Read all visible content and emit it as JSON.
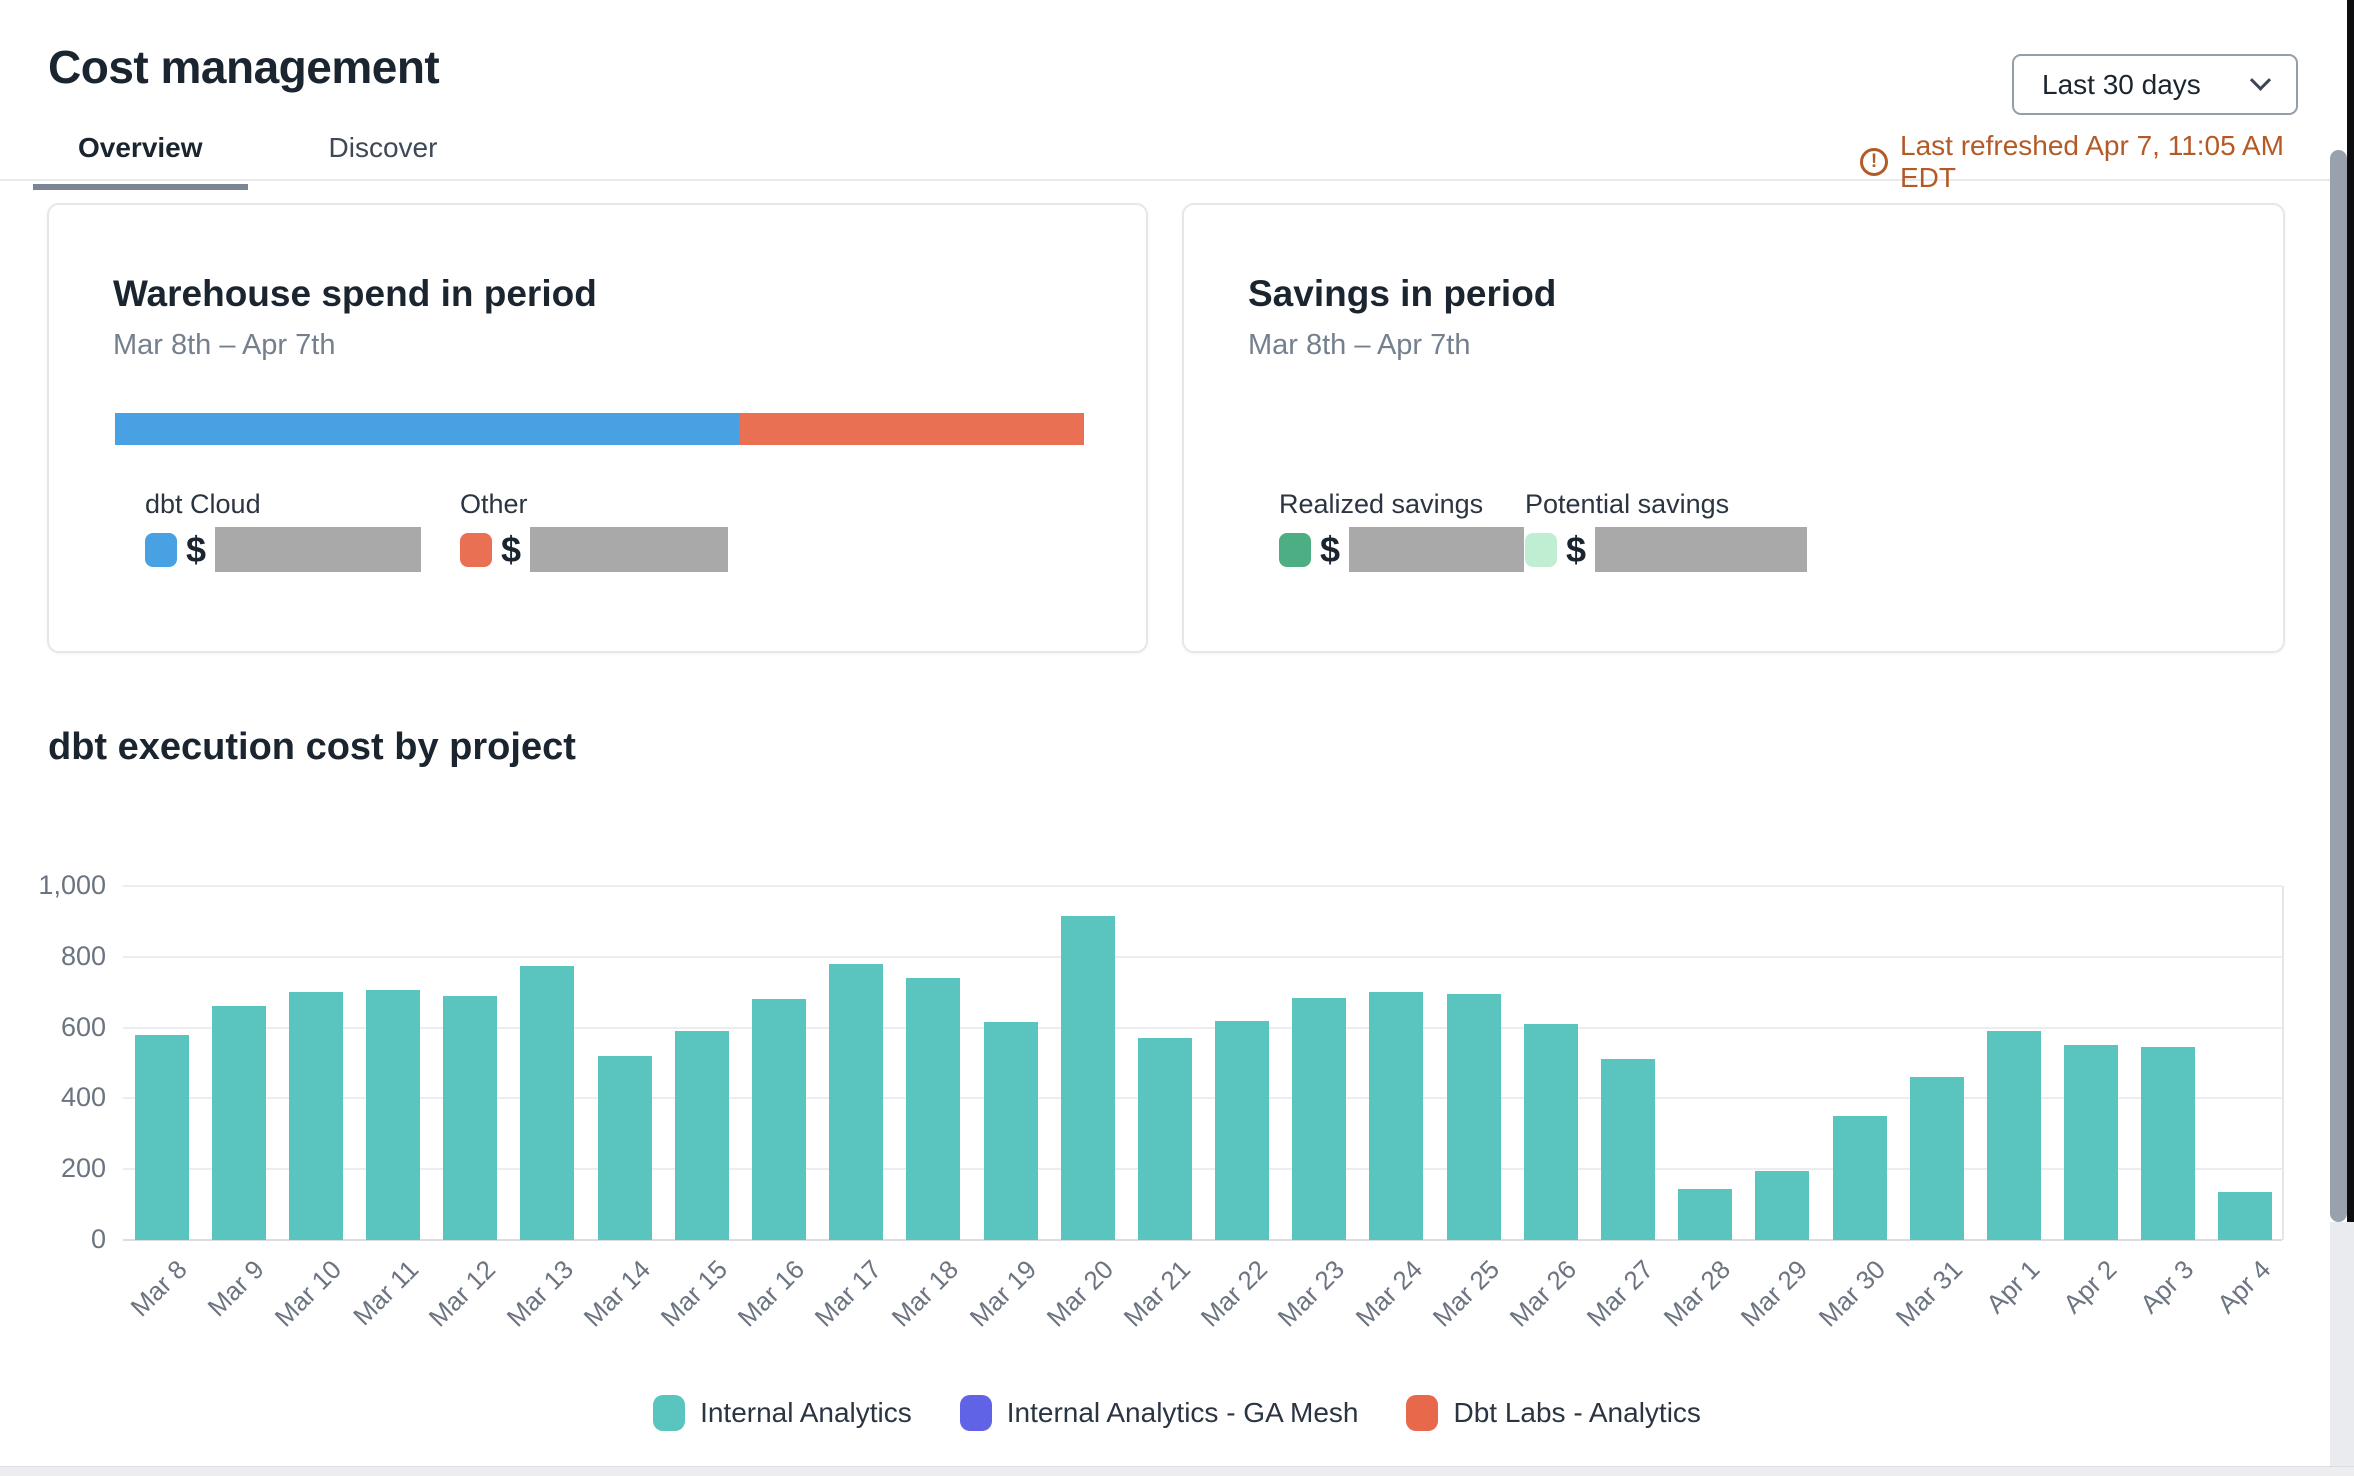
{
  "header": {
    "title": "Cost management",
    "tabs": [
      {
        "label": "Overview",
        "active": true
      },
      {
        "label": "Discover",
        "active": false
      }
    ],
    "range_selector": {
      "value": "Last 30 days"
    },
    "last_refreshed": "Last refreshed Apr 7, 11:05 AM EDT",
    "alert_glyph": "!",
    "refresh_color": "#B45A26"
  },
  "cards": {
    "warehouse": {
      "title": "Warehouse spend in period",
      "subtitle": "Mar 8th – Apr 7th",
      "bar_segments": [
        {
          "name": "dbt Cloud",
          "color": "#48A1E2",
          "fraction": 0.645
        },
        {
          "name": "Other",
          "color": "#EA7053",
          "fraction": 0.355
        }
      ],
      "legend": [
        {
          "label": "dbt Cloud",
          "color": "#48A1E2",
          "value_prefix": "$",
          "value_hidden": true
        },
        {
          "label": "Other",
          "color": "#EA7053",
          "value_prefix": "$",
          "value_hidden": true
        }
      ]
    },
    "savings": {
      "title": "Savings in period",
      "subtitle": "Mar 8th – Apr 7th",
      "legend": [
        {
          "label": "Realized savings",
          "color": "#4CAE82",
          "value_prefix": "$",
          "value_hidden": true
        },
        {
          "label": "Potential savings",
          "color": "#BFEED3",
          "value_prefix": "$",
          "value_hidden": true
        }
      ]
    }
  },
  "chart_section": {
    "title": "dbt execution cost by project"
  },
  "chart_data": {
    "type": "bar",
    "title": "dbt execution cost by project",
    "categories": [
      "Mar 8",
      "Mar 9",
      "Mar 10",
      "Mar 11",
      "Mar 12",
      "Mar 13",
      "Mar 14",
      "Mar 15",
      "Mar 16",
      "Mar 17",
      "Mar 18",
      "Mar 19",
      "Mar 20",
      "Mar 21",
      "Mar 22",
      "Mar 23",
      "Mar 24",
      "Mar 25",
      "Mar 26",
      "Mar 27",
      "Mar 28",
      "Mar 29",
      "Mar 30",
      "Mar 31",
      "Apr 1",
      "Apr 2",
      "Apr 3",
      "Apr 4"
    ],
    "series": [
      {
        "name": "Internal Analytics",
        "color": "#5AC4BE",
        "values": [
          580,
          660,
          700,
          705,
          690,
          775,
          520,
          590,
          680,
          780,
          740,
          615,
          915,
          570,
          620,
          685,
          700,
          695,
          610,
          510,
          145,
          195,
          350,
          460,
          590,
          550,
          545,
          135
        ]
      },
      {
        "name": "Internal Analytics - GA Mesh",
        "color": "#6063E5",
        "values": [
          0,
          0,
          0,
          0,
          0,
          0,
          0,
          0,
          0,
          0,
          0,
          0,
          0,
          0,
          0,
          0,
          0,
          0,
          0,
          0,
          0,
          0,
          0,
          0,
          0,
          0,
          0,
          0
        ]
      },
      {
        "name": "Dbt Labs - Analytics",
        "color": "#E8684B",
        "values": [
          0,
          0,
          0,
          0,
          0,
          0,
          0,
          0,
          0,
          0,
          0,
          0,
          0,
          0,
          0,
          0,
          0,
          0,
          0,
          0,
          0,
          0,
          0,
          0,
          0,
          0,
          0,
          0
        ]
      }
    ],
    "xlabel": "",
    "ylabel": "",
    "ylim": [
      0,
      1000
    ],
    "ytick_step": 200,
    "ytick_labels": [
      "0",
      "200",
      "400",
      "600",
      "800",
      "1,000"
    ],
    "grid": true,
    "legend_position": "bottom"
  }
}
